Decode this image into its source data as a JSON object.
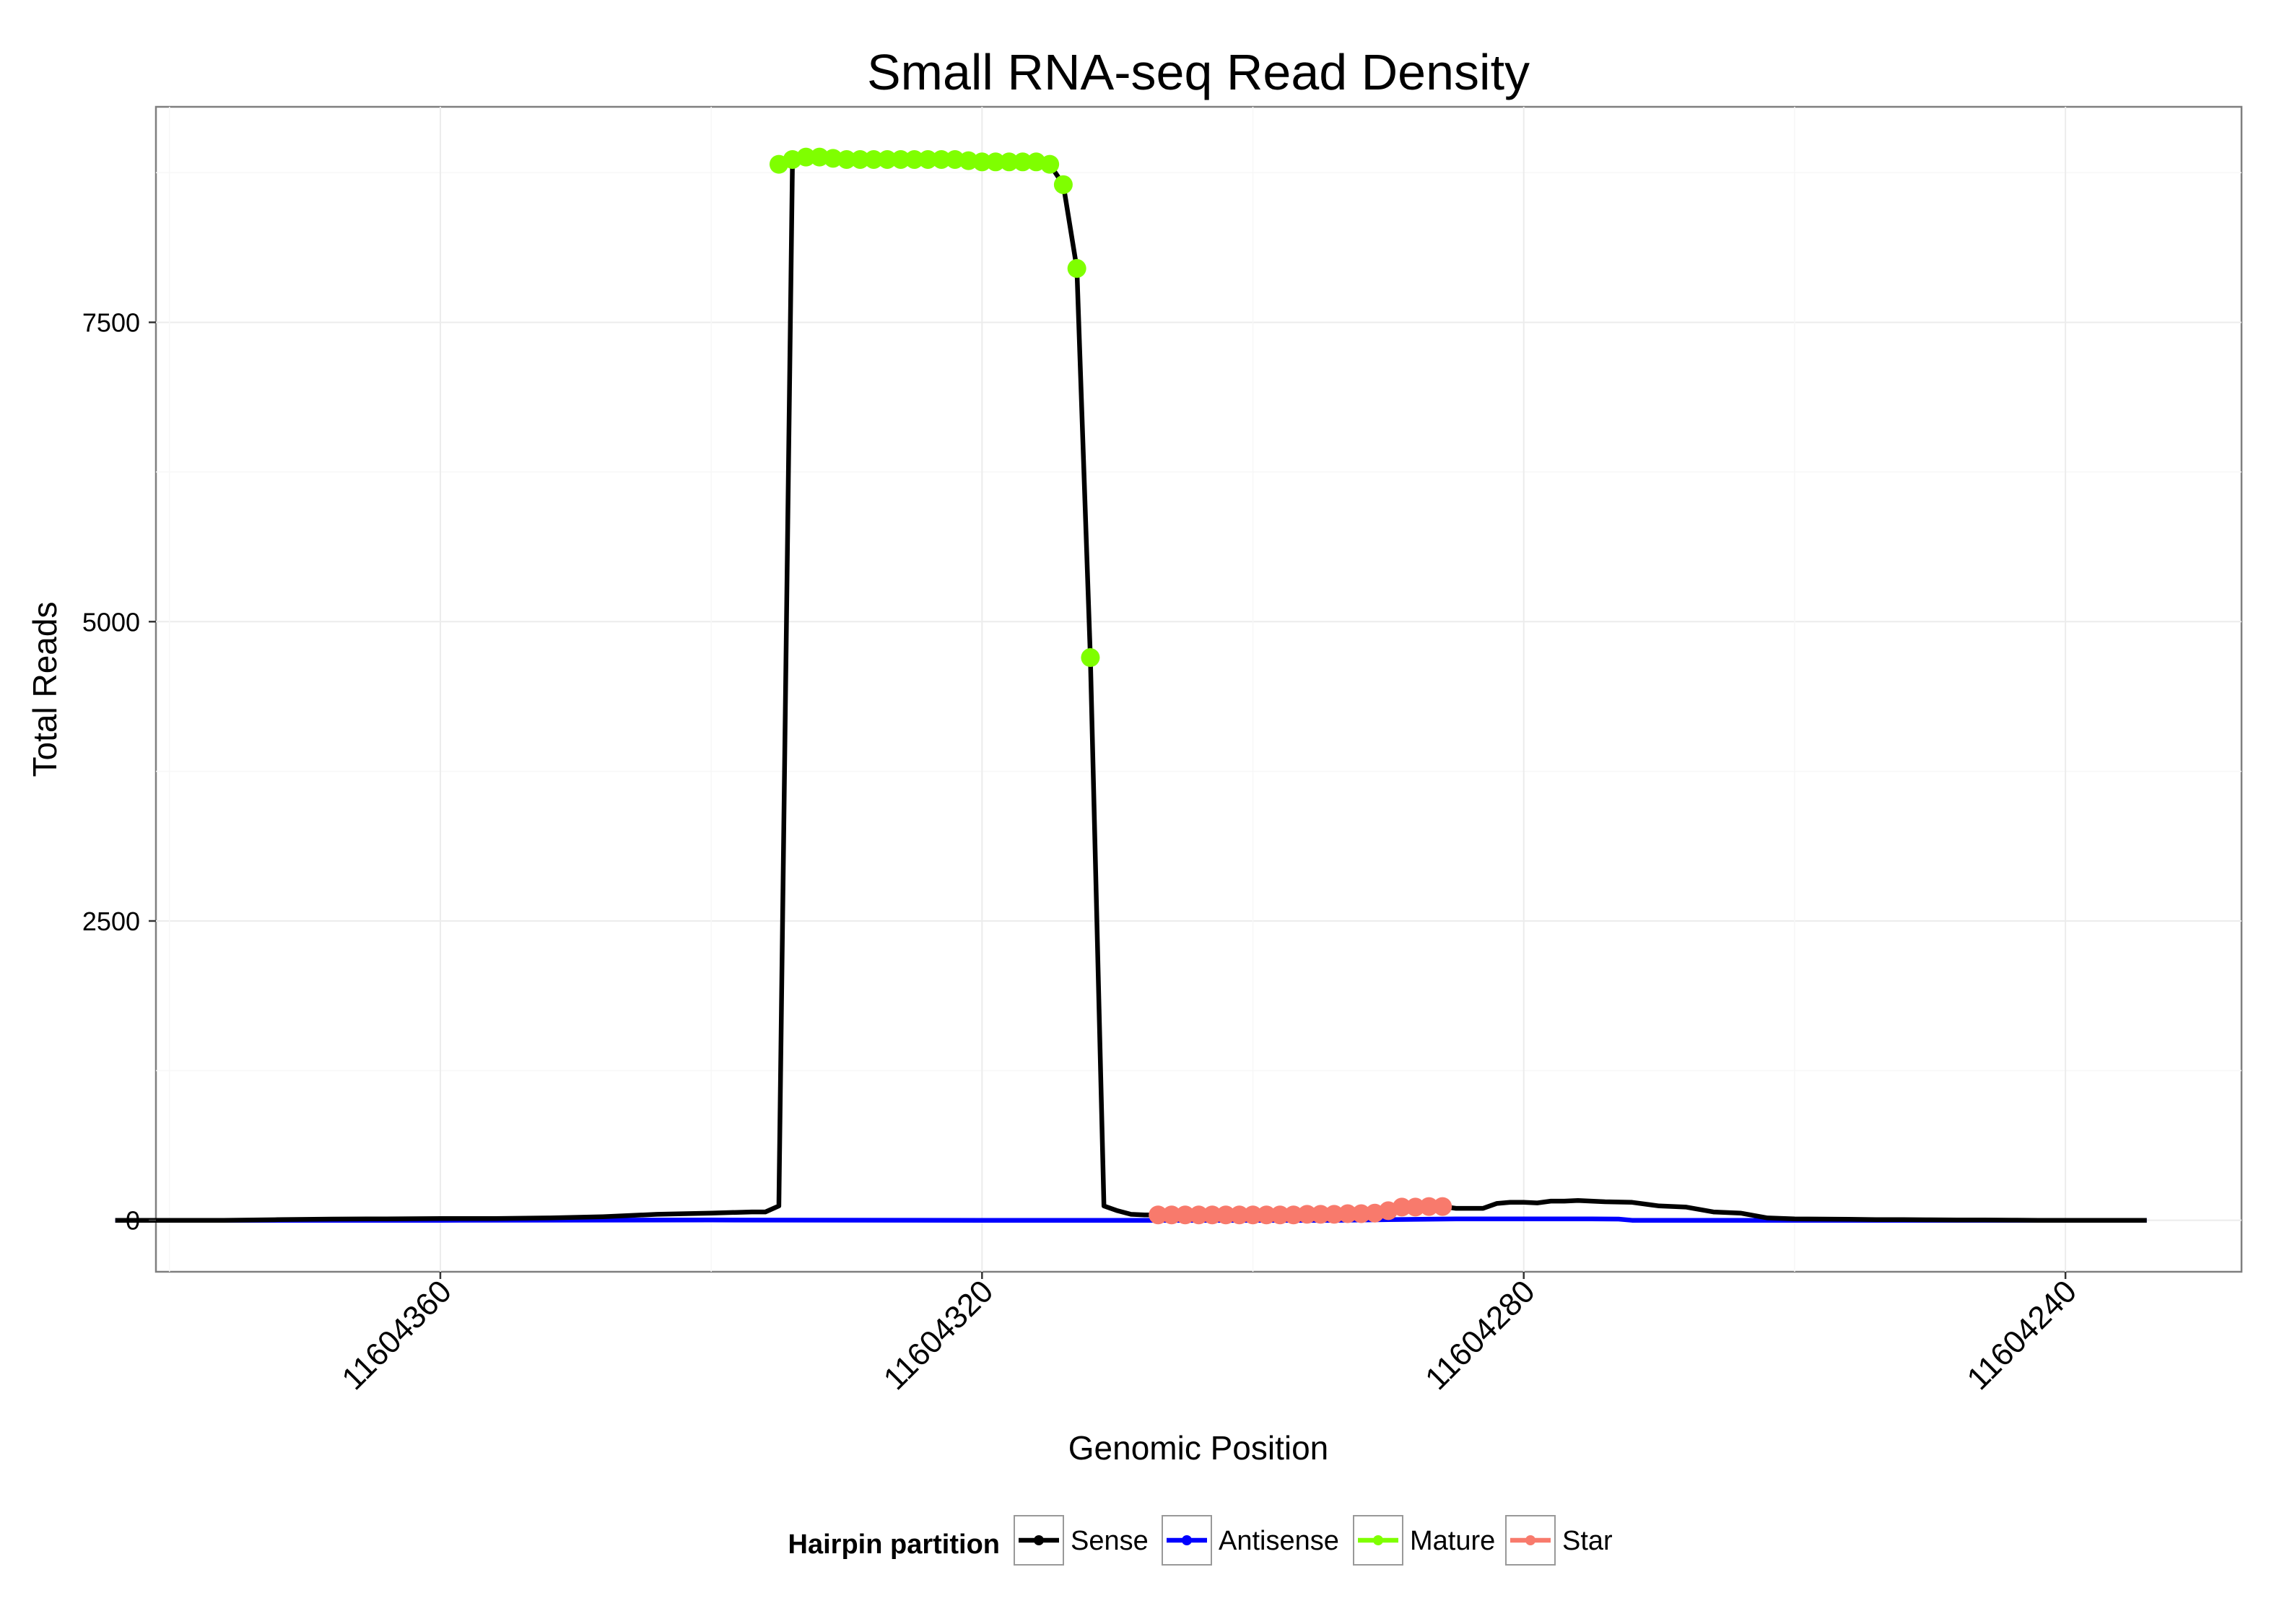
{
  "chart_data": {
    "type": "line",
    "title": "Small RNA-seq Read Density",
    "xlabel": "Genomic Position",
    "ylabel": "Total Reads",
    "x_reversed": true,
    "xlim": [
      11604381,
      11604227
    ],
    "ylim": [
      -430,
      9300
    ],
    "x_ticks": [
      11604360,
      11604320,
      11604280,
      11604240
    ],
    "x_tick_labels": [
      "11604360",
      "11604320",
      "11604280",
      "11604240"
    ],
    "y_ticks": [
      0,
      2500,
      5000,
      7500
    ],
    "y_tick_labels": [
      "0",
      "2500",
      "5000",
      "7500"
    ],
    "grid": true,
    "legend": {
      "title": "Hairpin partition",
      "placement": "bottom",
      "entries": [
        "Sense",
        "Antisense",
        "Mature",
        "Star"
      ]
    },
    "series": [
      {
        "name": "Sense",
        "color": "#000000",
        "x": [
          11604384,
          11604380,
          11604376,
          11604372,
          11604368,
          11604364,
          11604360,
          11604356,
          11604352,
          11604348,
          11604344,
          11604340,
          11604337,
          11604336,
          11604335,
          11604334,
          11604333,
          11604332,
          11604331,
          11604330,
          11604329,
          11604328,
          11604327,
          11604326,
          11604325,
          11604324,
          11604323,
          11604322,
          11604321,
          11604320,
          11604319,
          11604318,
          11604317,
          11604316,
          11604315,
          11604314,
          11604313,
          11604312,
          11604311,
          11604310,
          11604309,
          11604308,
          11604307,
          11604306,
          11604305,
          11604304,
          11604303,
          11604302,
          11604301,
          11604300,
          11604299,
          11604298,
          11604297,
          11604296,
          11604295,
          11604294,
          11604293,
          11604292,
          11604291,
          11604290,
          11604289,
          11604288,
          11604287,
          11604286,
          11604285,
          11604284,
          11604283,
          11604282,
          11604281,
          11604280,
          11604279,
          11604278,
          11604277,
          11604276,
          11604275,
          11604274,
          11604272,
          11604270,
          11604268,
          11604266,
          11604264,
          11604262,
          11604260,
          11604258,
          11604256,
          11604254,
          11604252,
          11604250,
          11604248,
          11604246,
          11604244,
          11604242,
          11604240,
          11604238,
          11604236,
          11604234
        ],
        "y": [
          0,
          0,
          0,
          5,
          10,
          12,
          15,
          15,
          20,
          30,
          50,
          60,
          70,
          70,
          120,
          8820,
          8860,
          8880,
          8880,
          8870,
          8860,
          8860,
          8860,
          8860,
          8860,
          8860,
          8860,
          8860,
          8850,
          8840,
          8840,
          8840,
          8840,
          8840,
          8820,
          8650,
          7950,
          4700,
          120,
          80,
          50,
          45,
          45,
          45,
          45,
          45,
          45,
          45,
          45,
          45,
          45,
          45,
          45,
          50,
          50,
          50,
          55,
          55,
          60,
          80,
          110,
          110,
          115,
          115,
          100,
          100,
          100,
          140,
          150,
          150,
          145,
          160,
          160,
          165,
          160,
          155,
          150,
          120,
          110,
          70,
          60,
          20,
          12,
          10,
          8,
          6,
          5,
          4,
          3,
          2,
          1,
          0,
          0,
          0,
          0,
          0
        ]
      },
      {
        "name": "Antisense",
        "color": "#0000ff",
        "x": [
          11604384,
          11604360,
          11604340,
          11604320,
          11604300,
          11604294,
          11604290,
          11604285,
          11604280,
          11604275,
          11604273,
          11604272,
          11604260,
          11604250,
          11604240,
          11604234
        ],
        "y": [
          0,
          0,
          2,
          0,
          0,
          0,
          5,
          12,
          12,
          12,
          10,
          0,
          0,
          0,
          0,
          0
        ]
      },
      {
        "name": "Mature",
        "color": "#7fff00",
        "x": [
          11604335,
          11604334,
          11604333,
          11604332,
          11604331,
          11604330,
          11604329,
          11604328,
          11604327,
          11604326,
          11604325,
          11604324,
          11604323,
          11604322,
          11604321,
          11604320,
          11604319,
          11604318,
          11604317,
          11604316,
          11604315,
          11604314,
          11604313,
          11604312
        ],
        "y": [
          8820,
          8860,
          8880,
          8880,
          8870,
          8860,
          8860,
          8860,
          8860,
          8860,
          8860,
          8860,
          8860,
          8860,
          8850,
          8840,
          8840,
          8840,
          8840,
          8840,
          8820,
          8650,
          7950,
          4700
        ]
      },
      {
        "name": "Star",
        "color": "#f87a6c",
        "x": [
          11604307,
          11604306,
          11604305,
          11604304,
          11604303,
          11604302,
          11604301,
          11604300,
          11604299,
          11604298,
          11604297,
          11604296,
          11604295,
          11604294,
          11604293,
          11604292,
          11604291,
          11604290,
          11604289,
          11604288,
          11604287,
          11604286
        ],
        "y": [
          45,
          45,
          45,
          45,
          45,
          45,
          45,
          45,
          45,
          45,
          45,
          50,
          50,
          50,
          55,
          55,
          60,
          80,
          110,
          110,
          115,
          115
        ]
      }
    ]
  }
}
